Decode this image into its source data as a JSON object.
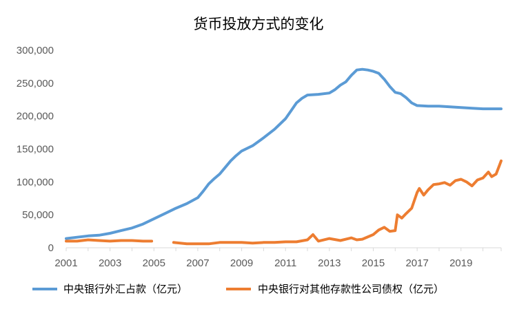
{
  "chart_data": {
    "type": "line",
    "title": "货币投放方式的变化",
    "xlabel": "",
    "ylabel": "",
    "xlim": [
      2001.0,
      2020.83
    ],
    "ylim": [
      0,
      300000
    ],
    "y_ticks": [
      "0",
      "50,000",
      "100,000",
      "150,000",
      "200,000",
      "250,000",
      "300,000"
    ],
    "y_tick_values": [
      0,
      50000,
      100000,
      150000,
      200000,
      250000,
      300000
    ],
    "x_ticks": [
      "2001",
      "2003",
      "2005",
      "2007",
      "2009",
      "2011",
      "2013",
      "2015",
      "2017",
      "2019"
    ],
    "x_tick_values": [
      2001,
      2003,
      2005,
      2007,
      2009,
      2011,
      2013,
      2015,
      2017,
      2019
    ],
    "grid": false,
    "legend_position": "bottom",
    "series": [
      {
        "name": "中央银行外汇占款（亿元）",
        "color": "#5B9BD5",
        "points": [
          [
            2001.0,
            14000
          ],
          [
            2001.5,
            16000
          ],
          [
            2002.0,
            18000
          ],
          [
            2002.5,
            19000
          ],
          [
            2003.0,
            22000
          ],
          [
            2003.5,
            26000
          ],
          [
            2004.0,
            30000
          ],
          [
            2004.5,
            36000
          ],
          [
            2005.0,
            44000
          ],
          [
            2005.5,
            52000
          ],
          [
            2006.0,
            60000
          ],
          [
            2006.5,
            67000
          ],
          [
            2007.0,
            76000
          ],
          [
            2007.25,
            86000
          ],
          [
            2007.5,
            97000
          ],
          [
            2007.75,
            105000
          ],
          [
            2008.0,
            112000
          ],
          [
            2008.25,
            122000
          ],
          [
            2008.5,
            132000
          ],
          [
            2008.75,
            140000
          ],
          [
            2009.0,
            147000
          ],
          [
            2009.5,
            155000
          ],
          [
            2010.0,
            167000
          ],
          [
            2010.5,
            180000
          ],
          [
            2011.0,
            196000
          ],
          [
            2011.25,
            208000
          ],
          [
            2011.5,
            220000
          ],
          [
            2011.75,
            227000
          ],
          [
            2012.0,
            232000
          ],
          [
            2012.5,
            233000
          ],
          [
            2013.0,
            235000
          ],
          [
            2013.25,
            240000
          ],
          [
            2013.5,
            247000
          ],
          [
            2013.75,
            252000
          ],
          [
            2014.0,
            262000
          ],
          [
            2014.25,
            270000
          ],
          [
            2014.5,
            271000
          ],
          [
            2014.75,
            270000
          ],
          [
            2015.0,
            268000
          ],
          [
            2015.25,
            265000
          ],
          [
            2015.5,
            256000
          ],
          [
            2015.75,
            245000
          ],
          [
            2016.0,
            236000
          ],
          [
            2016.25,
            234000
          ],
          [
            2016.5,
            228000
          ],
          [
            2016.75,
            220000
          ],
          [
            2017.0,
            216000
          ],
          [
            2017.5,
            215000
          ],
          [
            2018.0,
            215000
          ],
          [
            2018.5,
            214000
          ],
          [
            2019.0,
            213000
          ],
          [
            2019.5,
            212000
          ],
          [
            2020.0,
            211000
          ],
          [
            2020.5,
            211000
          ],
          [
            2020.83,
            211000
          ]
        ]
      },
      {
        "name": "中央银行对其他存款性公司债权（亿元）",
        "color": "#ED7D31",
        "segments": [
          [
            [
              2001.0,
              10000
            ],
            [
              2001.5,
              10000
            ],
            [
              2002.0,
              12000
            ],
            [
              2002.5,
              11000
            ],
            [
              2003.0,
              10000
            ],
            [
              2003.5,
              11000
            ],
            [
              2004.0,
              11000
            ],
            [
              2004.5,
              10000
            ],
            [
              2004.9,
              10000
            ]
          ],
          [
            [
              2005.9,
              8000
            ],
            [
              2006.5,
              6000
            ],
            [
              2007.0,
              6000
            ],
            [
              2007.5,
              6000
            ],
            [
              2008.0,
              8000
            ],
            [
              2008.5,
              8000
            ],
            [
              2009.0,
              8000
            ],
            [
              2009.5,
              7000
            ],
            [
              2010.0,
              8000
            ],
            [
              2010.5,
              8000
            ],
            [
              2011.0,
              9000
            ],
            [
              2011.5,
              9000
            ],
            [
              2012.0,
              12000
            ],
            [
              2012.25,
              20000
            ],
            [
              2012.5,
              10000
            ],
            [
              2013.0,
              14000
            ],
            [
              2013.5,
              11000
            ],
            [
              2014.0,
              15000
            ],
            [
              2014.25,
              12000
            ],
            [
              2014.5,
              13000
            ],
            [
              2015.0,
              20000
            ],
            [
              2015.25,
              27000
            ],
            [
              2015.5,
              31000
            ],
            [
              2015.75,
              25000
            ],
            [
              2016.0,
              26000
            ],
            [
              2016.1,
              50000
            ],
            [
              2016.3,
              45000
            ],
            [
              2016.5,
              52000
            ],
            [
              2016.75,
              60000
            ],
            [
              2017.0,
              84000
            ],
            [
              2017.1,
              90000
            ],
            [
              2017.3,
              80000
            ],
            [
              2017.5,
              88000
            ],
            [
              2017.75,
              96000
            ],
            [
              2018.0,
              97000
            ],
            [
              2018.25,
              99000
            ],
            [
              2018.5,
              95000
            ],
            [
              2018.75,
              102000
            ],
            [
              2019.0,
              104000
            ],
            [
              2019.25,
              100000
            ],
            [
              2019.5,
              94000
            ],
            [
              2019.75,
              103000
            ],
            [
              2020.0,
              106000
            ],
            [
              2020.25,
              115000
            ],
            [
              2020.4,
              108000
            ],
            [
              2020.6,
              112000
            ],
            [
              2020.75,
              125000
            ],
            [
              2020.83,
              132000
            ]
          ]
        ]
      }
    ]
  }
}
